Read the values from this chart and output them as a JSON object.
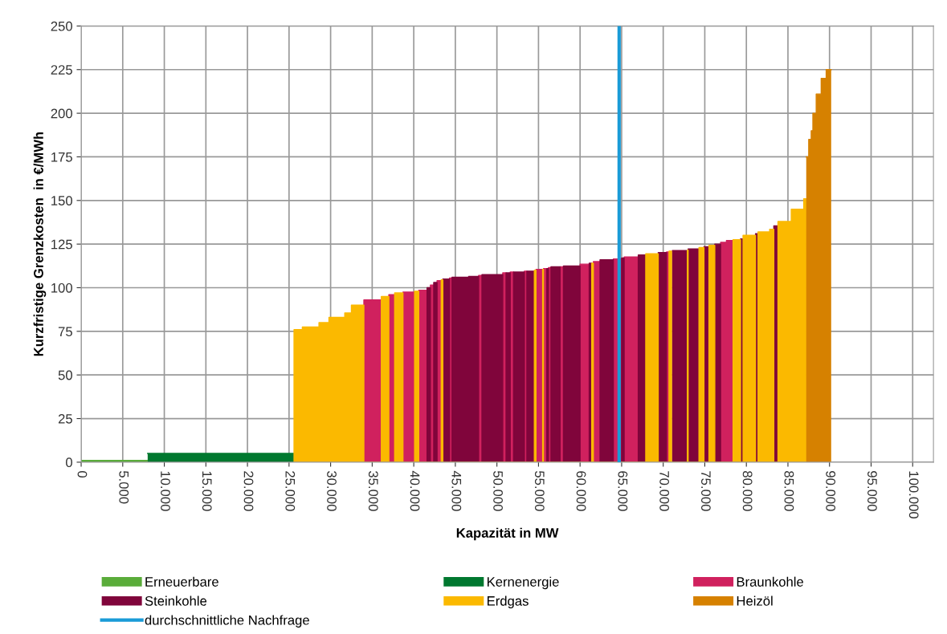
{
  "chart_data": {
    "type": "area",
    "xlabel": "Kapazität in MW",
    "ylabel": "Kurzfristige Grenzkosten  in €/MWh",
    "xlim": [
      0,
      102500
    ],
    "ylim": [
      0,
      250
    ],
    "xticks": [
      0,
      {
        "value": 5000,
        "label": "5.000"
      },
      {
        "value": 10000,
        "label": "10.000"
      },
      {
        "value": 15000,
        "label": "15.000"
      },
      {
        "value": 20000,
        "label": "20.000"
      },
      {
        "value": 25000,
        "label": "25.000"
      },
      {
        "value": 30000,
        "label": "30.000"
      },
      {
        "value": 35000,
        "label": "35.000"
      },
      {
        "value": 40000,
        "label": "40.000"
      },
      {
        "value": 45000,
        "label": "45.000"
      },
      {
        "value": 50000,
        "label": "50.000"
      },
      {
        "value": 55000,
        "label": "55.000"
      },
      {
        "value": 60000,
        "label": "60.000"
      },
      {
        "value": 65000,
        "label": "65.000"
      },
      {
        "value": 70000,
        "label": "70.000"
      },
      {
        "value": 75000,
        "label": "75.000"
      },
      {
        "value": 80000,
        "label": "80.000"
      },
      {
        "value": 85000,
        "label": "85.000"
      },
      {
        "value": 90000,
        "label": "90.000"
      },
      {
        "value": 95000,
        "label": "95.000"
      },
      {
        "value": 100000,
        "label": "100.000"
      }
    ],
    "yticks": [
      0,
      25,
      50,
      75,
      100,
      125,
      150,
      175,
      200,
      225,
      250
    ],
    "grid": true,
    "legend": "bottom",
    "series": [
      {
        "name": "Erneuerbare",
        "color": "#5aac3a",
        "x": [
          0,
          8000
        ],
        "values": [
          1,
          1
        ]
      },
      {
        "name": "Kernenergie",
        "color": "#00782f",
        "x": [
          8000,
          25600
        ],
        "values": [
          5,
          5
        ]
      },
      {
        "name": "Braunkohle",
        "color": "#d0215e",
        "x": [
          34000,
          34000,
          36100,
          36100,
          37000,
          37000,
          37700,
          37700,
          38700,
          38700,
          40100,
          40100,
          40600,
          40600,
          41600,
          41600,
          42000,
          42000,
          42400,
          42400,
          42800,
          42800,
          43300,
          43300,
          44300,
          44300,
          44600,
          44600,
          47800,
          47800,
          48200,
          48200,
          50700,
          50700,
          51100,
          51100,
          51600,
          51600,
          52000,
          52000,
          53300,
          53300,
          53600,
          53600,
          54700,
          54700,
          55500,
          55500,
          55600,
          55600,
          56000,
          56000,
          56200,
          56200,
          56500,
          56500,
          57600,
          57600,
          58000,
          58000,
          60000,
          60000,
          61100,
          61100,
          61600,
          61600,
          62400,
          62400,
          64000,
          64000,
          65000,
          65000,
          65300,
          65300,
          67000,
          67000,
          70400,
          70400,
          70700,
          70700,
          76900,
          76900,
          77600,
          77600,
          78400,
          78400
        ],
        "values": [
          0,
          93,
          93,
          0,
          0,
          96,
          96,
          0,
          0,
          97.5,
          97.5,
          0,
          0,
          98.5,
          98.5,
          0,
          0,
          101.5,
          101.5,
          0,
          0,
          104,
          104,
          0,
          0,
          105.5,
          105.5,
          0,
          0,
          107,
          107,
          0,
          0,
          108.5,
          108.5,
          0,
          0,
          109,
          109,
          0,
          0,
          109.5,
          109.5,
          0,
          0,
          110.5,
          110.5,
          0,
          0,
          111,
          111,
          0,
          0,
          111.5,
          111.5,
          0,
          0,
          112,
          112,
          0,
          0,
          113.5,
          113.5,
          0,
          0,
          115,
          115,
          0,
          0,
          116.5,
          116.5,
          0,
          0,
          117.6,
          117.6,
          0,
          0,
          120.5,
          120.5,
          0,
          0,
          126,
          126,
          127,
          127,
          0
        ]
      },
      {
        "name": "Steinkohle",
        "color": "#80053b",
        "x": [
          41600,
          41600,
          42000,
          42000,
          42400,
          42400,
          42800,
          42800,
          43500,
          43500,
          44300,
          44300,
          44600,
          44600,
          46600,
          46600,
          47800,
          47800,
          48200,
          48200,
          50700,
          50700,
          51100,
          51100,
          51600,
          51600,
          52000,
          52000,
          53300,
          53300,
          53600,
          53600,
          54500,
          54500,
          56000,
          56000,
          56200,
          56200,
          56500,
          56500,
          57600,
          57600,
          58000,
          58000,
          60000,
          60000,
          61100,
          61100,
          61400,
          61400,
          62400,
          62400,
          64000,
          64000,
          65000,
          65000,
          65300,
          65300,
          67000,
          67000,
          67900,
          67900,
          69400,
          69400,
          70400,
          70400,
          71100,
          71100,
          72900,
          72900,
          73000,
          73000,
          74300,
          74300,
          74900,
          74900,
          75500,
          75500,
          76200,
          76200,
          76900,
          76900,
          79300,
          79300,
          79600,
          79600,
          81100,
          81100,
          81400,
          81400,
          83300,
          83300,
          83800,
          83800
        ],
        "values": [
          0,
          100,
          100,
          0,
          0,
          103,
          103,
          0,
          0,
          105,
          105,
          0,
          0,
          106,
          106,
          106.5,
          106.5,
          0,
          0,
          107.5,
          107.5,
          0,
          0,
          108.5,
          108.5,
          0,
          0,
          109,
          109,
          0,
          0,
          109.5,
          109.5,
          0,
          0,
          111,
          111,
          0,
          0,
          112,
          112,
          0,
          0,
          112.5,
          112.5,
          0,
          0,
          114,
          114,
          0,
          0,
          116,
          116,
          0,
          0,
          117,
          117,
          0,
          0,
          118.8,
          118.8,
          0,
          0,
          120.2,
          120.2,
          0,
          0,
          121.3,
          121.3,
          0,
          0,
          122.2,
          122.2,
          0,
          0,
          123.5,
          123.5,
          0,
          0,
          125,
          125,
          0,
          0,
          128,
          128,
          0,
          0,
          131,
          131,
          0,
          0,
          135.5,
          135.5,
          0
        ]
      },
      {
        "name": "Erdgas",
        "color": "#fbb900",
        "x": [
          25600,
          25600,
          26600,
          26600,
          28600,
          28600,
          29800,
          29800,
          31700,
          31700,
          32500,
          32500,
          34000,
          34000,
          36100,
          36100,
          37000,
          37000,
          37700,
          37700,
          38700,
          38700,
          40100,
          40100,
          40600,
          40600,
          43300,
          43300,
          43500,
          43500,
          54500,
          54500,
          54700,
          54700,
          55500,
          55500,
          55600,
          55600,
          61400,
          61400,
          61600,
          61600,
          67900,
          67900,
          69400,
          69400,
          70700,
          70700,
          71000,
          71000,
          72900,
          72900,
          73000,
          73000,
          74300,
          74300,
          74900,
          74900,
          75500,
          75500,
          76200,
          76200,
          78400,
          78400,
          79300,
          79300,
          79600,
          79600,
          81100,
          81100,
          81400,
          81400,
          82800,
          82800,
          83300,
          83300,
          83800,
          83800,
          85400,
          85400,
          86900,
          86900,
          87200,
          87200
        ],
        "values": [
          0,
          76,
          76,
          77.5,
          77.5,
          80,
          80,
          83,
          83,
          85.5,
          85.5,
          90,
          90,
          0,
          0,
          95,
          95,
          0,
          0,
          97,
          97,
          0,
          0,
          98,
          98,
          0,
          0,
          104.5,
          104.5,
          0,
          0,
          110,
          110,
          0,
          0,
          110.5,
          110.5,
          0,
          0,
          114,
          114,
          0,
          0,
          119.5,
          119.5,
          0,
          0,
          121,
          121,
          0,
          0,
          121.5,
          121.5,
          0,
          0,
          123,
          123,
          0,
          0,
          124.3,
          124.3,
          0,
          0,
          127.5,
          127.5,
          0,
          0,
          130,
          130,
          0,
          0,
          132,
          132,
          133.5,
          133.5,
          0,
          0,
          138,
          138,
          145,
          145,
          151,
          151,
          0
        ]
      },
      {
        "name": "Heizöl",
        "color": "#d68100",
        "x": [
          87200,
          87500,
          87500,
          87800,
          87800,
          88000,
          88000,
          88400,
          88400,
          89000,
          89000,
          89600,
          89600,
          90200
        ],
        "values": [
          175,
          175,
          185,
          185,
          190,
          190,
          200,
          200,
          211,
          211,
          220,
          220,
          225,
          225
        ]
      }
    ],
    "ref_lines": [
      {
        "axis": "x",
        "value": 64700,
        "label": "durchschnittliche Nachfrage",
        "color": "#1a9bd7"
      }
    ]
  }
}
